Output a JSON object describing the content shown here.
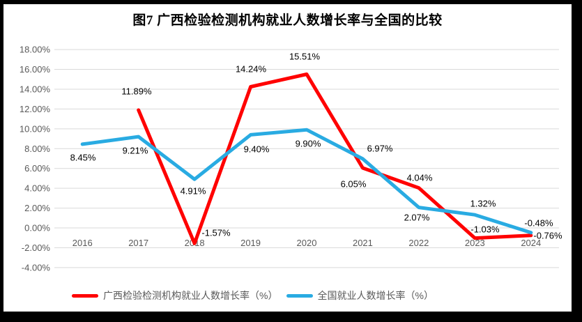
{
  "title": "图7 广西检验检测机构就业人数增长率与全国的比较",
  "chart_data": {
    "type": "line",
    "title": "图7 广西检验检测机构就业人数增长率与全国的比较",
    "categories": [
      "2016",
      "2017",
      "2018",
      "2019",
      "2020",
      "2021",
      "2022",
      "2023",
      "2024"
    ],
    "series": [
      {
        "name": "广西检验检测机构就业人数增长率（%）",
        "color": "#FF0000",
        "values": [
          null,
          11.89,
          -1.57,
          14.24,
          15.51,
          6.05,
          4.04,
          -1.03,
          -0.76
        ]
      },
      {
        "name": "全国就业人数增长率（%）",
        "color": "#29ABE2",
        "values": [
          8.45,
          9.21,
          4.91,
          9.4,
          9.9,
          6.97,
          2.07,
          1.32,
          -0.48
        ]
      }
    ],
    "y_ticks": [
      "18.00%",
      "16.00%",
      "14.00%",
      "12.00%",
      "10.00%",
      "8.00%",
      "6.00%",
      "4.00%",
      "2.00%",
      "0.00%",
      "-2.00%",
      "-4.00%"
    ],
    "ylim": [
      -4,
      18
    ],
    "y_step": 2,
    "grid": true,
    "data_labels": true,
    "legend_position": "bottom"
  },
  "colors": {
    "gridline": "#D9D9D9",
    "axis_text": "#595959",
    "data_label_text": "#000000",
    "frame": "#000000",
    "background": "#FFFFFF"
  }
}
